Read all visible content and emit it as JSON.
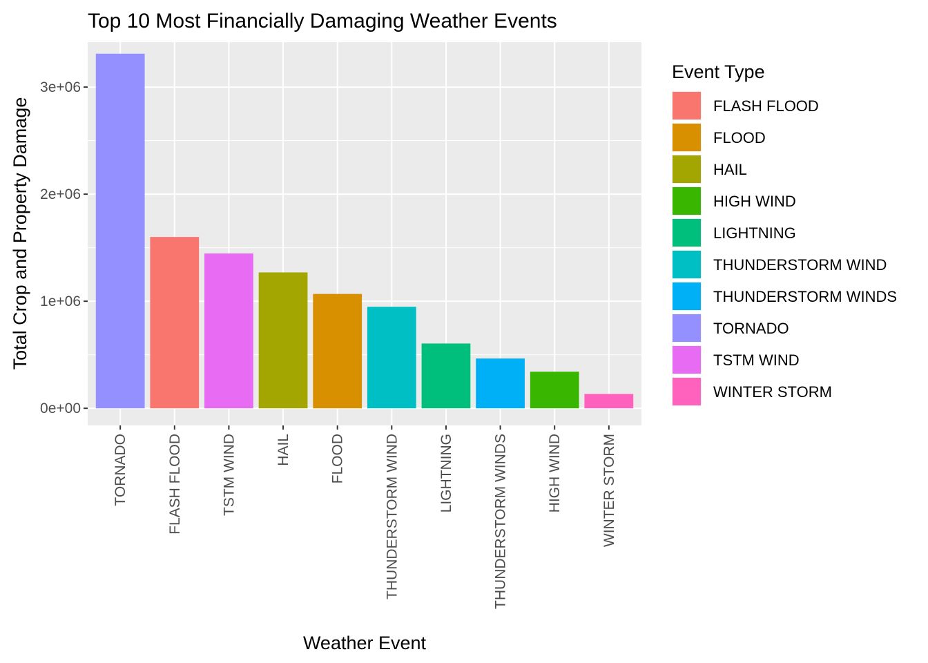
{
  "chart_data": {
    "type": "bar",
    "title": "Top 10 Most Financially Damaging Weather Events",
    "xlabel": "Weather Event",
    "ylabel": "Total Crop and Property Damage",
    "ylim": [
      -160000,
      3420000
    ],
    "y_ticks": [
      0,
      1000000,
      2000000,
      3000000
    ],
    "y_tick_labels": [
      "0e+00",
      "1e+06",
      "2e+06",
      "3e+06"
    ],
    "grid": true,
    "panel_background": "#ebebeb",
    "grid_color": "#ffffff",
    "categories": [
      "TORNADO",
      "FLASH FLOOD",
      "TSTM WIND",
      "HAIL",
      "FLOOD",
      "THUNDERSTORM WIND",
      "LIGHTNING",
      "THUNDERSTORM WINDS",
      "HIGH WIND",
      "WINTER STORM"
    ],
    "values": [
      3312000,
      1600000,
      1446000,
      1269000,
      1068000,
      948000,
      605000,
      465000,
      342000,
      134000
    ],
    "bar_colors": [
      "#9590FF",
      "#F8766D",
      "#E76BF3",
      "#A3A500",
      "#D89000",
      "#00BFC4",
      "#00BF7D",
      "#00B0F6",
      "#39B600",
      "#FF62BC"
    ],
    "legend": {
      "title": "Event Type",
      "position": "right",
      "entries": [
        {
          "label": "FLASH FLOOD",
          "color": "#F8766D"
        },
        {
          "label": "FLOOD",
          "color": "#D89000"
        },
        {
          "label": "HAIL",
          "color": "#A3A500"
        },
        {
          "label": "HIGH WIND",
          "color": "#39B600"
        },
        {
          "label": "LIGHTNING",
          "color": "#00BF7D"
        },
        {
          "label": "THUNDERSTORM WIND",
          "color": "#00BFC4"
        },
        {
          "label": "THUNDERSTORM WINDS",
          "color": "#00B0F6"
        },
        {
          "label": "TORNADO",
          "color": "#9590FF"
        },
        {
          "label": "TSTM WIND",
          "color": "#E76BF3"
        },
        {
          "label": "WINTER STORM",
          "color": "#FF62BC"
        }
      ]
    }
  }
}
